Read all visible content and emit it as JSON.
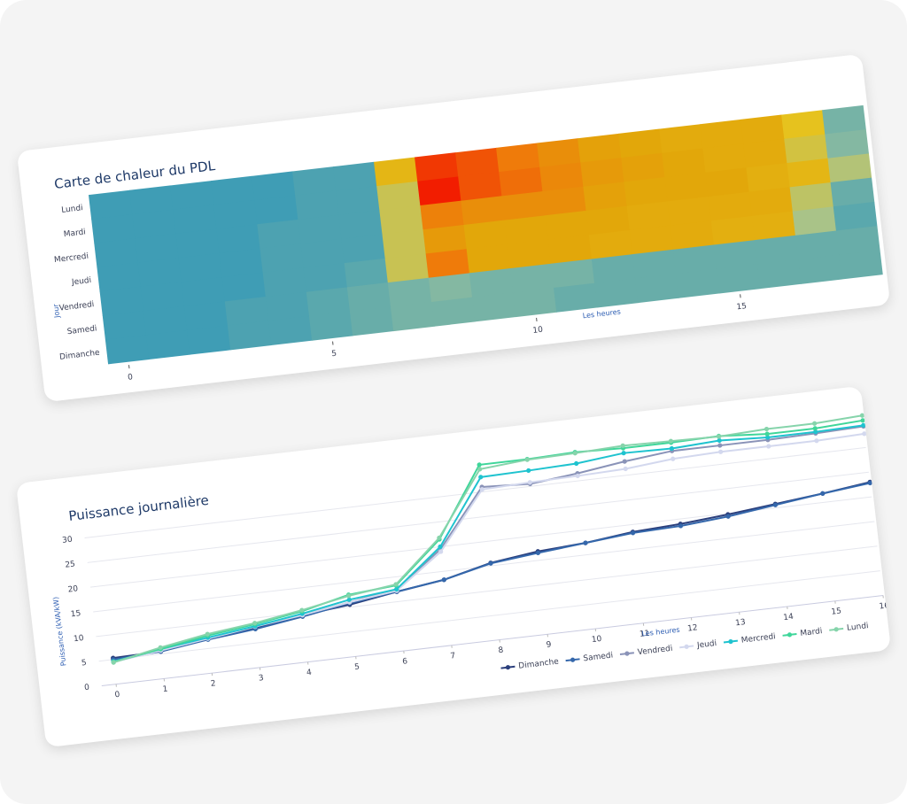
{
  "chart_data": [
    {
      "type": "heatmap",
      "title": "Carte de chaleur du PDL",
      "xlabel": "Les heures",
      "ylabel": "Jour",
      "x": [
        0,
        1,
        2,
        3,
        4,
        5,
        6,
        7,
        8,
        9,
        10,
        11,
        12,
        13,
        14,
        15,
        16,
        17,
        18
      ],
      "y": [
        "Lundi",
        "Mardi",
        "Mercredi",
        "Jeudi",
        "Vendredi",
        "Samedi",
        "Dimanche"
      ],
      "z": [
        [
          5,
          5,
          5,
          5,
          5,
          6,
          6,
          22,
          38,
          36,
          33,
          30,
          27,
          26,
          25,
          25,
          25,
          19,
          9
        ],
        [
          5,
          5,
          5,
          5,
          5,
          6,
          6,
          16,
          40,
          36,
          34,
          31,
          28,
          27,
          26,
          25,
          25,
          17,
          10
        ],
        [
          5,
          5,
          5,
          5,
          6,
          6,
          6,
          16,
          32,
          30,
          30,
          30,
          27,
          26,
          26,
          26,
          24,
          22,
          14
        ],
        [
          5,
          5,
          5,
          5,
          6,
          6,
          6,
          16,
          28,
          26,
          26,
          26,
          26,
          25,
          25,
          25,
          25,
          15,
          8
        ],
        [
          5,
          5,
          5,
          5,
          6,
          6,
          7,
          16,
          33,
          26,
          26,
          26,
          25,
          25,
          25,
          24,
          24,
          13,
          7
        ],
        [
          5,
          5,
          5,
          6,
          6,
          7,
          8,
          9,
          10,
          9,
          9,
          9,
          8,
          8,
          8,
          8,
          8,
          8,
          8
        ],
        [
          5,
          5,
          5,
          6,
          6,
          7,
          8,
          9,
          9,
          9,
          9,
          8,
          8,
          8,
          8,
          8,
          8,
          8,
          8
        ]
      ],
      "zlim": [
        5,
        40
      ],
      "colorscale": [
        "#3f9db5",
        "#9fc39a",
        "#e6c21e",
        "#e2a70a",
        "#ef7b0a",
        "#f21d00"
      ],
      "xlim": [
        -0.5,
        18.5
      ],
      "xticks": [
        0,
        5,
        10,
        15
      ]
    },
    {
      "type": "line",
      "title": "Puissance journalière",
      "xlabel": "Les heures",
      "ylabel": "Puissance (kVA/kW)",
      "x": [
        0,
        1,
        2,
        3,
        4,
        5,
        6,
        7,
        8,
        9,
        10,
        11,
        12,
        13,
        14,
        15,
        16
      ],
      "xlim": [
        -0.3,
        16
      ],
      "xticks": [
        0,
        1,
        2,
        3,
        4,
        5,
        6,
        7,
        8,
        9,
        10,
        11,
        12,
        13,
        14,
        15,
        16
      ],
      "ylim": [
        0,
        38
      ],
      "yticks": [
        0,
        5,
        10,
        15,
        20,
        25,
        30
      ],
      "grid": true,
      "legend": "bottom",
      "series": [
        {
          "name": "Dimanche",
          "color": "#2b3f7c",
          "values": [
            5.3,
            5.5,
            7,
            8,
            9.5,
            10.5,
            12,
            13.3,
            15.6,
            16.8,
            17.4,
            18.5,
            19,
            19.8,
            20.8,
            21.8,
            23
          ]
        },
        {
          "name": "Samedi",
          "color": "#3467ab",
          "values": [
            5,
            5.5,
            6.8,
            7.8,
            9.2,
            10.8,
            12,
            13.3,
            15.5,
            16.5,
            17.4,
            18.3,
            18.6,
            19.4,
            20.6,
            21.8,
            22.8
          ]
        },
        {
          "name": "Vendredi",
          "color": "#8a93b8",
          "values": [
            4.6,
            5.8,
            7,
            8.3,
            9.5,
            11,
            12.5,
            19.5,
            31,
            30.5,
            31.5,
            32.8,
            33.8,
            33.8,
            33.8,
            34,
            34.3
          ]
        },
        {
          "name": "Jeudi",
          "color": "#d3d8ee",
          "values": [
            4.5,
            5.7,
            7,
            8.3,
            9.5,
            11,
            12.2,
            19,
            30.5,
            30.8,
            31,
            31.3,
            32.2,
            32.5,
            32.5,
            32.5,
            32.8
          ]
        },
        {
          "name": "Mercredi",
          "color": "#1fc3cf",
          "values": [
            4.6,
            6,
            7.2,
            8.4,
            9.8,
            11.5,
            12.5,
            20,
            33,
            33.2,
            33.5,
            34.5,
            34.3,
            34.8,
            34.3,
            34.3,
            34.5
          ]
        },
        {
          "name": "Mardi",
          "color": "#3fd69a",
          "values": [
            4.5,
            6,
            7.6,
            8.8,
            10.3,
            12.5,
            13.3,
            21.5,
            35.5,
            35.5,
            35.8,
            35.5,
            35.5,
            35.7,
            35,
            35,
            35.5
          ]
        },
        {
          "name": "Lundi",
          "color": "#86d4ab",
          "values": [
            4.4,
            6.3,
            7.9,
            9,
            10.5,
            12.3,
            13.5,
            21.8,
            34.6,
            35.4,
            35.6,
            36,
            35.8,
            35.6,
            36,
            36,
            36.5
          ]
        }
      ]
    }
  ]
}
